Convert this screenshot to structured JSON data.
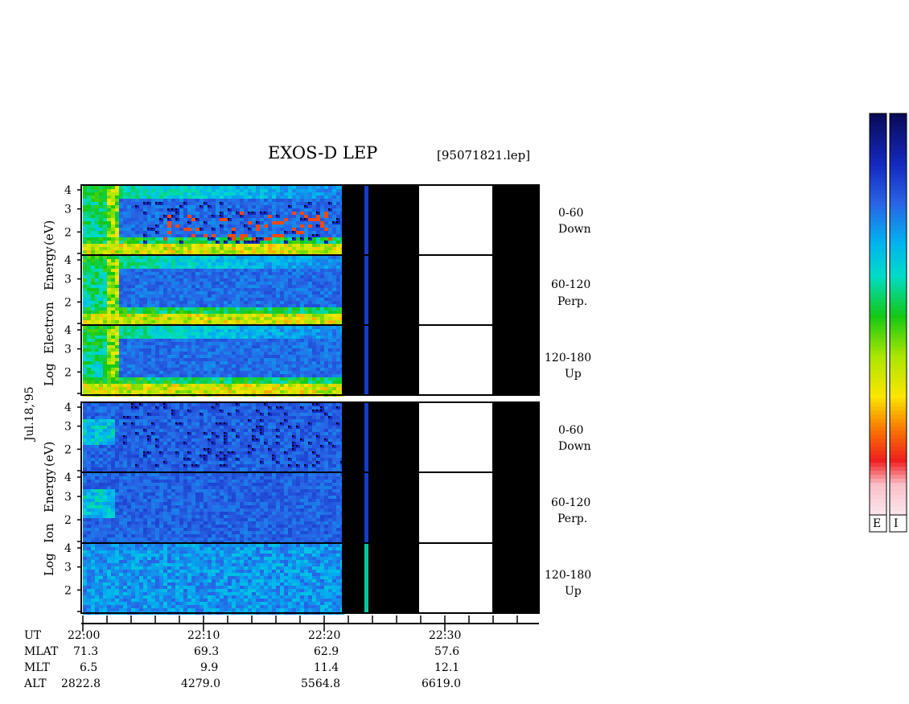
{
  "header": {
    "title": "EXOS-D LEP",
    "file": "[95071821.lep]"
  },
  "date_label": "Jul.18,'95",
  "electron_axis_label": [
    "Log",
    "Electron",
    "Energy",
    "(eV)"
  ],
  "ion_axis_label": [
    "Log",
    "Ion",
    "Energy",
    "(eV)"
  ],
  "colorbar": {
    "labels": [
      "E",
      "I"
    ]
  },
  "chart_data": {
    "type": "heatmap",
    "title": "EXOS-D LEP",
    "x_time_ticks": [
      "22:00",
      "22:10",
      "22:20",
      "22:30"
    ],
    "y_ticks": [
      "4",
      "3",
      "2"
    ],
    "y_ticks_bottom": [
      "4",
      "3",
      "2"
    ],
    "y_range_log_eV": [
      1,
      4
    ],
    "panels": [
      {
        "species": "Electron",
        "range": "0-60",
        "dir": "Down"
      },
      {
        "species": "Electron",
        "range": "60-120",
        "dir": "Perp."
      },
      {
        "species": "Electron",
        "range": "120-180",
        "dir": "Up"
      },
      {
        "species": "Ion",
        "range": "0-60",
        "dir": "Down"
      },
      {
        "species": "Ion",
        "range": "60-120",
        "dir": "Perp."
      },
      {
        "species": "Ion",
        "range": "120-180",
        "dir": "Up"
      }
    ],
    "orbit": {
      "rows": [
        {
          "name": "UT",
          "values": [
            "22:00",
            "22:10",
            "22:20",
            "22:30"
          ]
        },
        {
          "name": "MLAT",
          "values": [
            "71.3",
            "69.3",
            "62.9",
            "57.6"
          ]
        },
        {
          "name": "MLT",
          "values": [
            "6.5",
            "9.9",
            "11.4",
            "12.1"
          ]
        },
        {
          "name": "ALT",
          "values": [
            "2822.8",
            "4279.0",
            "5564.8",
            "6619.0"
          ]
        }
      ]
    }
  }
}
